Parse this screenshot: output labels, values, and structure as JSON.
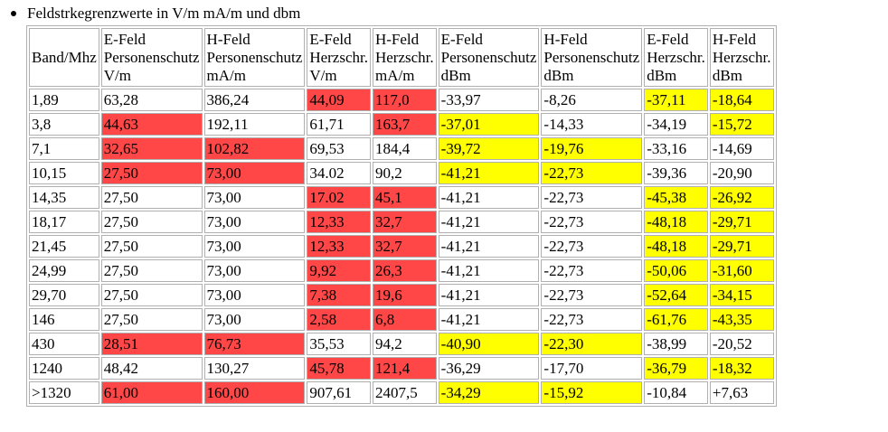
{
  "heading": "Feldstrkegrenzwerte in V/m mA/m und dbm",
  "colors": {
    "red": "#ff4747",
    "yellow": "#ffff00"
  },
  "columns": [
    [
      "",
      "Band/Mhz",
      ""
    ],
    [
      "E-Feld",
      "Personenschutz",
      "V/m"
    ],
    [
      "H-Feld",
      "Personenschutz",
      "mA/m"
    ],
    [
      "E-Feld",
      "Herzschr.",
      "V/m"
    ],
    [
      "H-Feld",
      "Herzschr.",
      "mA/m"
    ],
    [
      "E-Feld",
      "Personenschutz",
      "dBm"
    ],
    [
      "H-Feld",
      "Personenschutz",
      "dBm"
    ],
    [
      "E-Feld",
      "Herzschr.",
      "dBm"
    ],
    [
      "H-Feld",
      "Herzschr.",
      "dBm"
    ]
  ],
  "rows": [
    {
      "cells": [
        "1,89",
        "63,28",
        "386,24",
        "44,09",
        "117,0",
        "-33,97",
        "-8,26",
        "-37,11",
        "-18,64"
      ],
      "hl": [
        "",
        "",
        "",
        "r",
        "r",
        "",
        "",
        "y",
        "y"
      ]
    },
    {
      "cells": [
        "3,8",
        "44,63",
        "192,11",
        "61,71",
        "163,7",
        "-37,01",
        "-14,33",
        "-34,19",
        "-15,72"
      ],
      "hl": [
        "",
        "r",
        "",
        "",
        "r",
        "y",
        "",
        "",
        "y"
      ]
    },
    {
      "cells": [
        "7,1",
        "32,65",
        "102,82",
        "69,53",
        "184,4",
        "-39,72",
        "-19,76",
        "-33,16",
        "-14,69"
      ],
      "hl": [
        "",
        "r",
        "r",
        "",
        "",
        "y",
        "y",
        "",
        ""
      ]
    },
    {
      "cells": [
        "10,15",
        "27,50",
        "73,00",
        "34.02",
        "90,2",
        "-41,21",
        "-22,73",
        "-39,36",
        "-20,90"
      ],
      "hl": [
        "",
        "r",
        "r",
        "",
        "",
        "y",
        "y",
        "",
        ""
      ]
    },
    {
      "cells": [
        "14,35",
        "27,50",
        "73,00",
        "17.02",
        "45,1",
        "-41,21",
        "-22,73",
        "-45,38",
        "-26,92"
      ],
      "hl": [
        "",
        "",
        "",
        "r",
        "r",
        "",
        "",
        "y",
        "y"
      ]
    },
    {
      "cells": [
        "18,17",
        "27,50",
        "73,00",
        "12,33",
        "32,7",
        "-41,21",
        "-22,73",
        "-48,18",
        "-29,71"
      ],
      "hl": [
        "",
        "",
        "",
        "r",
        "r",
        "",
        "",
        "y",
        "y"
      ]
    },
    {
      "cells": [
        "21,45",
        "27,50",
        "73,00",
        "12,33",
        "32,7",
        "-41,21",
        "-22,73",
        "-48,18",
        "-29,71"
      ],
      "hl": [
        "",
        "",
        "",
        "r",
        "r",
        "",
        "",
        "y",
        "y"
      ]
    },
    {
      "cells": [
        "24,99",
        "27,50",
        "73,00",
        "9,92",
        "26,3",
        "-41,21",
        "-22,73",
        "-50,06",
        "-31,60"
      ],
      "hl": [
        "",
        "",
        "",
        "r",
        "r",
        "",
        "",
        "y",
        "y"
      ]
    },
    {
      "cells": [
        "29,70",
        "27,50",
        "73,00",
        "7,38",
        "19,6",
        "-41,21",
        "-22,73",
        "-52,64",
        "-34,15"
      ],
      "hl": [
        "",
        "",
        "",
        "r",
        "r",
        "",
        "",
        "y",
        "y"
      ]
    },
    {
      "cells": [
        "146",
        "27,50",
        "73,00",
        "2,58",
        "6,8",
        "-41,21",
        "-22,73",
        "-61,76",
        "-43,35"
      ],
      "hl": [
        "",
        "",
        "",
        "r",
        "r",
        "",
        "",
        "y",
        "y"
      ]
    },
    {
      "cells": [
        "430",
        "28,51",
        "76,73",
        "35,53",
        "94,2",
        "-40,90",
        "-22,30",
        "-38,99",
        "-20,52"
      ],
      "hl": [
        "",
        "r",
        "r",
        "",
        "",
        "y",
        "y",
        "",
        ""
      ]
    },
    {
      "cells": [
        "1240",
        "48,42",
        "130,27",
        "45,78",
        "121,4",
        "-36,29",
        "-17,70",
        "-36,79",
        "-18,32"
      ],
      "hl": [
        "",
        "",
        "",
        "r",
        "r",
        "",
        "",
        "y",
        "y"
      ]
    },
    {
      "cells": [
        ">1320",
        "61,00",
        "160,00",
        "907,61",
        "2407,5",
        "-34,29",
        "-15,92",
        "-10,84",
        "+7,63"
      ],
      "hl": [
        "",
        "r",
        "r",
        "",
        "",
        "y",
        "y",
        "",
        ""
      ]
    }
  ]
}
